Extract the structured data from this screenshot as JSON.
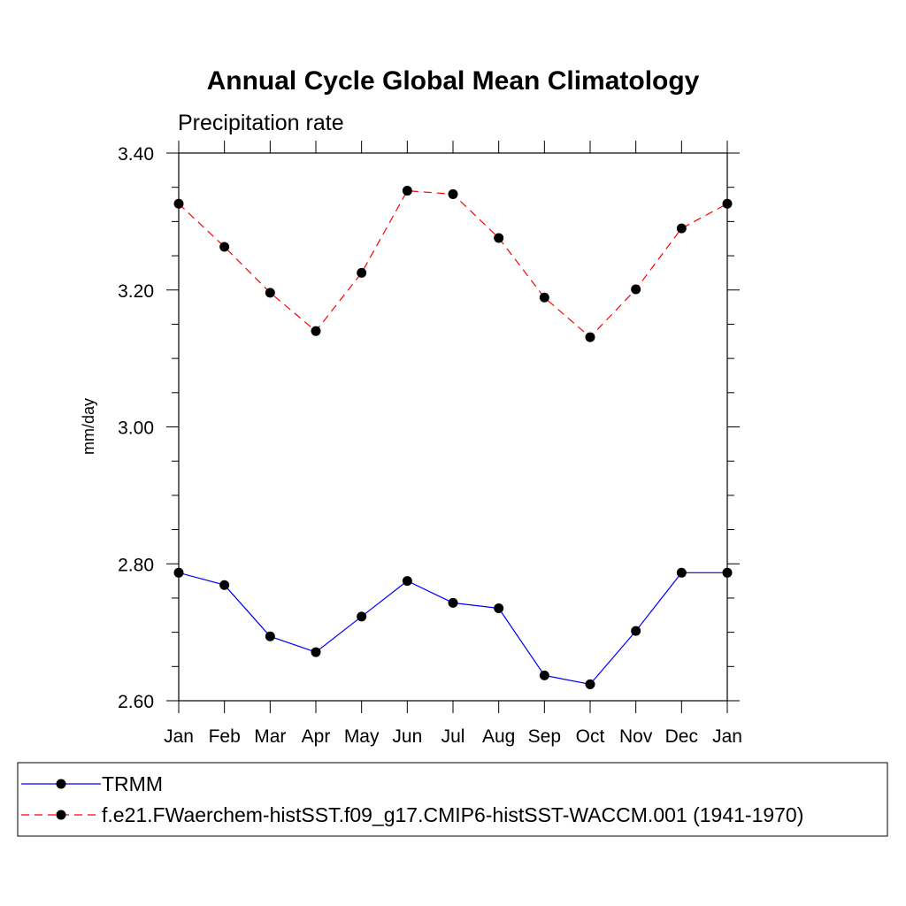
{
  "chart_data": {
    "type": "line",
    "title": "Annual Cycle Global Mean Climatology",
    "subtitle": "Precipitation rate",
    "ylabel": "mm/day",
    "xlabel": "",
    "categories": [
      "Jan",
      "Feb",
      "Mar",
      "Apr",
      "May",
      "Jun",
      "Jul",
      "Aug",
      "Sep",
      "Oct",
      "Nov",
      "Dec",
      "Jan"
    ],
    "ylim": [
      2.6,
      3.4
    ],
    "yticks_major": [
      "2.60",
      "2.80",
      "3.00",
      "3.20",
      "3.40"
    ],
    "ytick_minor_step": 0.05,
    "grid": false,
    "legend_placement": "bottom",
    "series": [
      {
        "name": "TRMM",
        "color": "#0000ff",
        "line_style": "solid",
        "marker": "filled-circle",
        "values": [
          2.787,
          2.769,
          2.694,
          2.671,
          2.723,
          2.775,
          2.743,
          2.735,
          2.637,
          2.624,
          2.702,
          2.787,
          2.787
        ]
      },
      {
        "name": "f.e21.FWaerchem-histSST.f09_g17.CMIP6-histSST-WACCM.001 (1941-1970)",
        "color": "#ff0000",
        "line_style": "dashed",
        "marker": "filled-circle",
        "values": [
          3.326,
          3.263,
          3.196,
          3.14,
          3.225,
          3.345,
          3.34,
          3.276,
          3.189,
          3.131,
          3.201,
          3.29,
          3.326
        ]
      }
    ]
  }
}
